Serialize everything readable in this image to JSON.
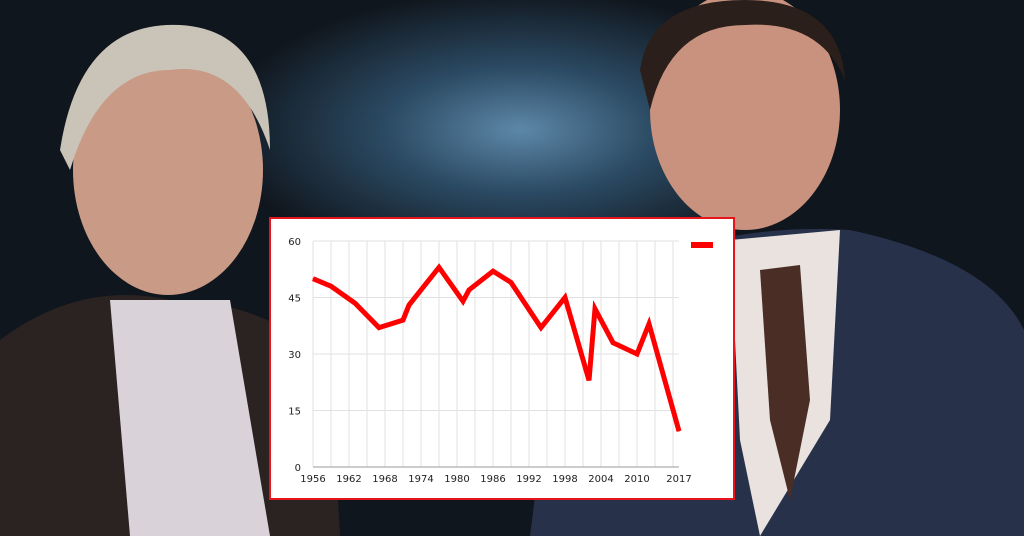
{
  "chart_data": {
    "type": "line",
    "title": "",
    "xlabel": "",
    "ylabel": "",
    "x_tick_labels": [
      "1956",
      "1962",
      "1968",
      "1974",
      "1980",
      "1986",
      "1992",
      "1998",
      "2004",
      "2010",
      "2017"
    ],
    "y_tick_labels": [
      "0",
      "15",
      "30",
      "45",
      "60"
    ],
    "ylim": [
      0,
      60
    ],
    "xlim": [
      1956,
      2017
    ],
    "grid": true,
    "legend_placement": "top-right",
    "series": [
      {
        "color": "#ff0000",
        "x": [
          1956,
          1959,
          1963,
          1967,
          1971,
          1972,
          1977,
          1981,
          1982,
          1986,
          1989,
          1994,
          1998,
          2002,
          2003,
          2006,
          2010,
          2012,
          2017
        ],
        "values": [
          50,
          48,
          43.5,
          37,
          39,
          43,
          53,
          44,
          47,
          52,
          49,
          37,
          45,
          23,
          42,
          33,
          30,
          38,
          9.5
        ]
      }
    ]
  },
  "colors": {
    "frame": "#e8141b",
    "line": "#ff0000",
    "background": "#10161d"
  }
}
